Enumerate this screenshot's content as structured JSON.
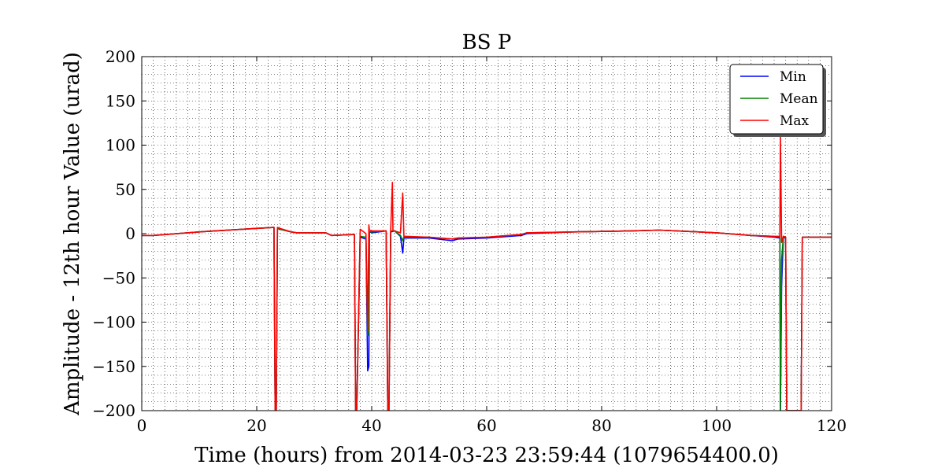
{
  "chart_data": {
    "type": "line",
    "title": "BS P",
    "xlabel": "Time (hours) from 2014-03-23 23:59:44 (1079654400.0)",
    "ylabel": "Amplitude - 12th hour Value (urad)",
    "xlim": [
      0,
      120
    ],
    "ylim": [
      -200,
      200
    ],
    "xticks": [
      0,
      20,
      40,
      60,
      80,
      100,
      120
    ],
    "yticks": [
      -200,
      -150,
      -100,
      -50,
      0,
      50,
      100,
      150,
      200
    ],
    "xtick_labels": [
      "0",
      "20",
      "40",
      "60",
      "80",
      "100",
      "120"
    ],
    "ytick_labels": [
      "−200",
      "−150",
      "−100",
      "−50",
      "0",
      "50",
      "100",
      "150",
      "200"
    ],
    "grid": "dotted",
    "legend_position": "top-right",
    "series": [
      {
        "name": "Min",
        "color": "#0000ff",
        "x": [
          0,
          2,
          10,
          20,
          23,
          23.2,
          23.4,
          23.6,
          24,
          26,
          27,
          32,
          33,
          37,
          37.2,
          37.4,
          38,
          39,
          39.3,
          39.5,
          39.6,
          40,
          42.5,
          42.8,
          43,
          43.3,
          44,
          45,
          45.4,
          45.6,
          46,
          50,
          54,
          55,
          60,
          66,
          67,
          75,
          85,
          90,
          100,
          106,
          110,
          111,
          111.1,
          111.3,
          111.6,
          112,
          112.2,
          112.4,
          114.5,
          114.7,
          114.9,
          120
        ],
        "y": [
          -2,
          -2,
          2,
          6,
          7,
          -200,
          -200,
          6,
          5,
          2,
          1,
          1,
          -2,
          -1,
          -200,
          -200,
          -4,
          -6,
          -155,
          -150,
          2,
          1,
          3,
          -200,
          -200,
          2,
          3,
          -3,
          -22,
          -5,
          -5,
          -5,
          -8,
          -6,
          -5,
          -2,
          0,
          2,
          3,
          4,
          1,
          -2,
          -4,
          -5,
          -200,
          -60,
          -4,
          -5,
          -200,
          -200,
          -200,
          -200,
          -4,
          -4
        ]
      },
      {
        "name": "Mean",
        "color": "#008000",
        "x": [
          0,
          2,
          10,
          20,
          23,
          23.2,
          23.4,
          23.6,
          24,
          26,
          27,
          32,
          33,
          37,
          37.2,
          37.4,
          38,
          39,
          39.3,
          39.5,
          39.6,
          40,
          42.5,
          42.8,
          43,
          43.3,
          44,
          45,
          45.4,
          45.6,
          46,
          50,
          54,
          55,
          60,
          66,
          67,
          75,
          85,
          90,
          100,
          106,
          110,
          111,
          111.1,
          111.3,
          111.6,
          112,
          112.2,
          112.4,
          114.5,
          114.7,
          114.9,
          120
        ],
        "y": [
          -2,
          -2,
          2,
          6,
          7,
          -200,
          -200,
          6,
          5,
          2,
          1,
          1,
          -2,
          -1,
          -200,
          -200,
          -3,
          -4,
          -115,
          -110,
          2,
          2,
          3,
          -200,
          -200,
          3,
          3,
          -2,
          -8,
          -4,
          -4,
          -4,
          -6,
          -5,
          -4,
          -1,
          1,
          2,
          3,
          4,
          1,
          -2,
          -3,
          -4,
          -200,
          -30,
          -3,
          -4,
          -200,
          -200,
          -200,
          -200,
          -4,
          -4
        ]
      },
      {
        "name": "Max",
        "color": "#ff0000",
        "x": [
          0,
          2,
          10,
          20,
          23,
          23.2,
          23.4,
          23.6,
          24,
          26,
          27,
          32,
          33,
          37,
          37.2,
          37.4,
          38,
          39,
          39.3,
          39.5,
          39.6,
          40,
          42.5,
          42.8,
          43,
          43.3,
          43.6,
          43.7,
          44,
          45,
          45.4,
          45.6,
          46,
          50,
          54,
          55,
          60,
          66,
          67,
          75,
          85,
          90,
          100,
          106,
          110,
          111,
          111.1,
          111.3,
          111.6,
          112,
          112.2,
          112.4,
          114.5,
          114.7,
          114.9,
          120
        ],
        "y": [
          -2,
          -2,
          2,
          6,
          7,
          -200,
          -200,
          7,
          6,
          2,
          1,
          1,
          -2,
          -1,
          -200,
          -200,
          5,
          0,
          -110,
          10,
          4,
          3,
          3,
          -200,
          -200,
          3,
          58,
          3,
          3,
          1,
          46,
          -3,
          -3,
          -4,
          -6,
          -5,
          -4,
          -1,
          1,
          2,
          3,
          4,
          1,
          -2,
          -3,
          -3,
          110,
          -10,
          -3,
          -4,
          -200,
          -200,
          -200,
          -200,
          -4,
          -4
        ]
      }
    ]
  }
}
